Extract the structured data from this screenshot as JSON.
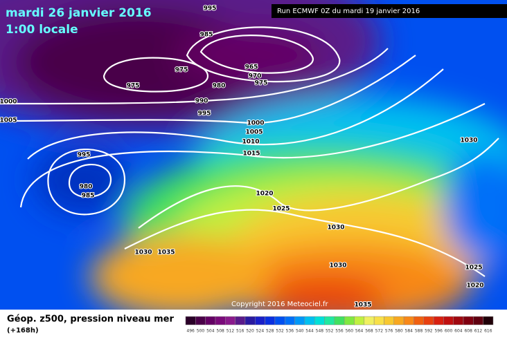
{
  "header": {
    "date": "mardi 26 janvier 2016",
    "time": "1:00 locale",
    "run": "Run ECMWF 0Z du mardi 19 janvier 2016"
  },
  "copyright": "Copyright 2016 Meteociel.fr",
  "isobar_labels": [
    995,
    985,
    975,
    965,
    970,
    975,
    980,
    975,
    990,
    995,
    1000,
    1005,
    1000,
    1005,
    1010,
    1015,
    995,
    980,
    985,
    1020,
    1025,
    1030,
    1030,
    1035,
    1030,
    1030,
    1025,
    1020,
    1035
  ],
  "legend": {
    "title": "Géop. z500, pression niveau mer",
    "subtitle": "(+168h)",
    "scale": [
      {
        "value": 496,
        "color": "#2a0028"
      },
      {
        "value": 500,
        "color": "#4a0048"
      },
      {
        "value": 504,
        "color": "#640064"
      },
      {
        "value": 508,
        "color": "#7a0a7a"
      },
      {
        "value": 512,
        "color": "#8a1a8c"
      },
      {
        "value": 516,
        "color": "#5a1a8a"
      },
      {
        "value": 520,
        "color": "#2a1aa0"
      },
      {
        "value": 524,
        "color": "#1a20c8"
      },
      {
        "value": 528,
        "color": "#0a30e0"
      },
      {
        "value": 532,
        "color": "#0050f0"
      },
      {
        "value": 536,
        "color": "#0070f8"
      },
      {
        "value": 540,
        "color": "#0098f8"
      },
      {
        "value": 544,
        "color": "#00c0f0"
      },
      {
        "value": 548,
        "color": "#00e0d8"
      },
      {
        "value": 552,
        "color": "#20e8a0"
      },
      {
        "value": 556,
        "color": "#40e060"
      },
      {
        "value": 560,
        "color": "#80e840"
      },
      {
        "value": 564,
        "color": "#c0f040"
      },
      {
        "value": 568,
        "color": "#f0f060"
      },
      {
        "value": 572,
        "color": "#f8e048"
      },
      {
        "value": 576,
        "color": "#f8c830"
      },
      {
        "value": 580,
        "color": "#f8a820"
      },
      {
        "value": 584,
        "color": "#f88818"
      },
      {
        "value": 588,
        "color": "#f06010"
      },
      {
        "value": 592,
        "color": "#e84010"
      },
      {
        "value": 596,
        "color": "#d82010"
      },
      {
        "value": 600,
        "color": "#c01010"
      },
      {
        "value": 604,
        "color": "#a00810"
      },
      {
        "value": 608,
        "color": "#800010"
      },
      {
        "value": 612,
        "color": "#600010"
      },
      {
        "value": 616,
        "color": "#200008"
      }
    ]
  }
}
